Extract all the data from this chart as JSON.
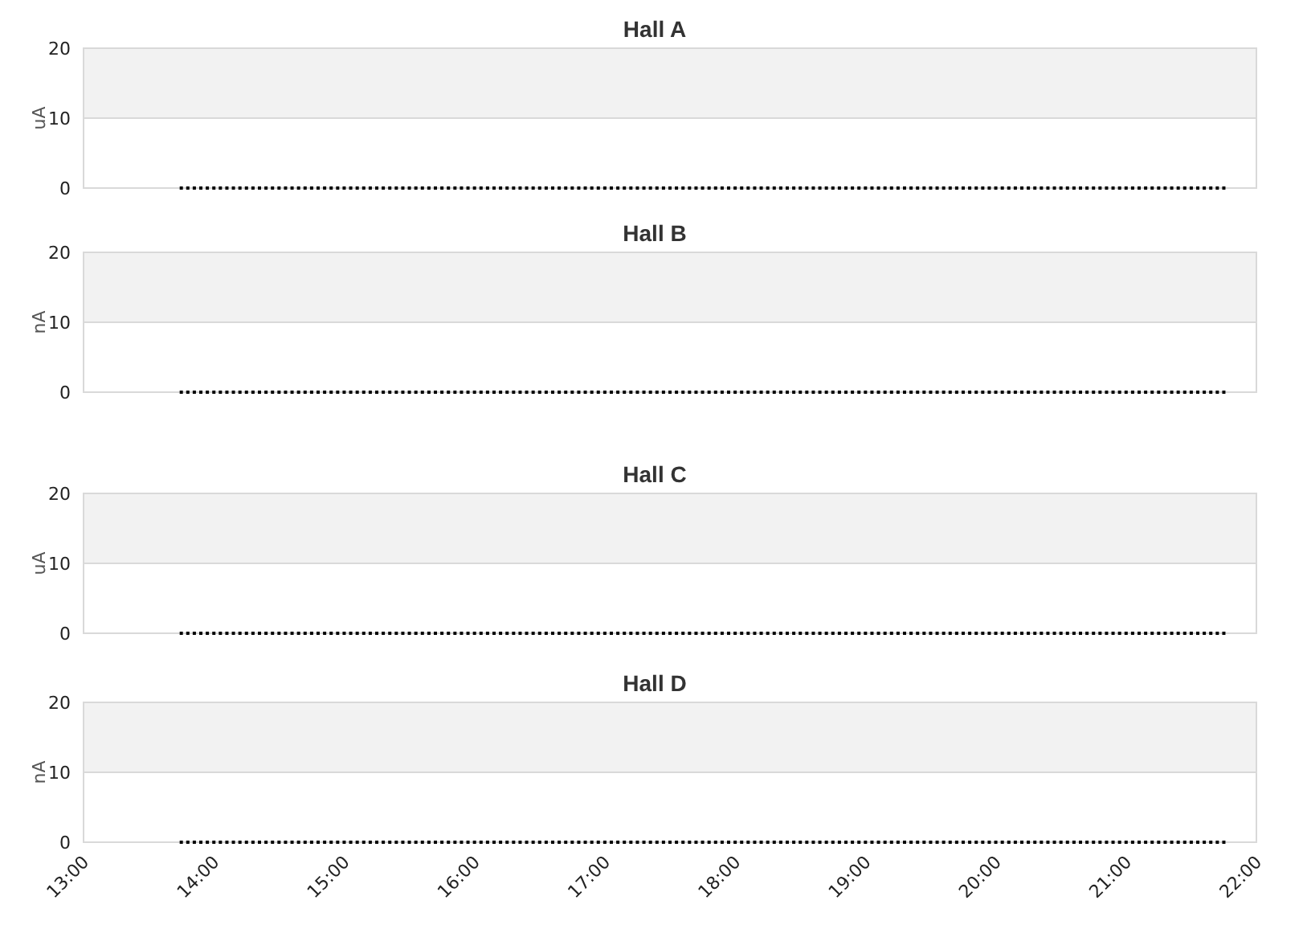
{
  "chart_data": [
    {
      "type": "scatter",
      "title": "Hall A",
      "ylabel": "uA",
      "xlim": [
        13,
        22
      ],
      "ylim": [
        0,
        20
      ],
      "yticks": [
        0,
        10,
        20
      ],
      "grid": "y",
      "bands": [
        {
          "axis": "y",
          "from": 10,
          "to": 20,
          "color": "#f2f2f2"
        }
      ],
      "tick_labels": "y",
      "marker": "square",
      "x": [
        13.75,
        13.8,
        13.85,
        13.9,
        13.95,
        14,
        14.05,
        14.1,
        14.15,
        14.2,
        14.25,
        14.3,
        14.35,
        14.4,
        14.45,
        14.5,
        14.55,
        14.6,
        14.65,
        14.7,
        14.75,
        14.8,
        14.85,
        14.9,
        14.95,
        15,
        15.05,
        15.1,
        15.15,
        15.2,
        15.25,
        15.3,
        15.35,
        15.4,
        15.45,
        15.5,
        15.55,
        15.6,
        15.65,
        15.7,
        15.75,
        15.8,
        15.85,
        15.9,
        15.95,
        16,
        16.05,
        16.1,
        16.15,
        16.2,
        16.25,
        16.3,
        16.35,
        16.4,
        16.45,
        16.5,
        16.55,
        16.6,
        16.65,
        16.7,
        16.75,
        16.8,
        16.85,
        16.9,
        16.95,
        17,
        17.05,
        17.1,
        17.15,
        17.2,
        17.25,
        17.3,
        17.35,
        17.4,
        17.45,
        17.5,
        17.55,
        17.6,
        17.65,
        17.7,
        17.75,
        17.8,
        17.85,
        17.9,
        17.95,
        18,
        18.05,
        18.1,
        18.15,
        18.2,
        18.25,
        18.3,
        18.35,
        18.4,
        18.45,
        18.5,
        18.55,
        18.6,
        18.65,
        18.7,
        18.75,
        18.8,
        18.85,
        18.9,
        18.95,
        19,
        19.05,
        19.1,
        19.15,
        19.2,
        19.25,
        19.3,
        19.35,
        19.4,
        19.45,
        19.5,
        19.55,
        19.6,
        19.65,
        19.7,
        19.75,
        19.8,
        19.85,
        19.9,
        19.95,
        20,
        20.05,
        20.1,
        20.15,
        20.2,
        20.25,
        20.3,
        20.35,
        20.4,
        20.45,
        20.5,
        20.55,
        20.6,
        20.65,
        20.7,
        20.75,
        20.8,
        20.85,
        20.9,
        20.95,
        21,
        21.05,
        21.1,
        21.15,
        21.2,
        21.25,
        21.3,
        21.35,
        21.4,
        21.45,
        21.5,
        21.55,
        21.6,
        21.65,
        21.7,
        21.75
      ],
      "series": [
        {
          "color": "#000000",
          "values": [
            0,
            0,
            0,
            0,
            0,
            0,
            0,
            0,
            0,
            0,
            0,
            0,
            0,
            0,
            0,
            0,
            0,
            0,
            0,
            0,
            0,
            0,
            0,
            0,
            0,
            0,
            0,
            0,
            0,
            0,
            0,
            0,
            0,
            0,
            0,
            0,
            0,
            0,
            0,
            0,
            0,
            0,
            0,
            0,
            0,
            0,
            0,
            0,
            0,
            0,
            0,
            0,
            0,
            0,
            0,
            0,
            0,
            0,
            0,
            0,
            0,
            0,
            0,
            0,
            0,
            0,
            0,
            0,
            0,
            0,
            0,
            0,
            0,
            0,
            0,
            0,
            0,
            0,
            0,
            0,
            0,
            0,
            0,
            0,
            0,
            0,
            0,
            0,
            0,
            0,
            0,
            0,
            0,
            0,
            0,
            0,
            0,
            0,
            0,
            0,
            0,
            0,
            0,
            0,
            0,
            0,
            0,
            0,
            0,
            0,
            0,
            0,
            0,
            0,
            0,
            0,
            0,
            0,
            0,
            0,
            0,
            0,
            0,
            0,
            0,
            0,
            0,
            0,
            0,
            0,
            0,
            0,
            0,
            0,
            0,
            0,
            0,
            0,
            0,
            0,
            0,
            0,
            0,
            0,
            0,
            0,
            0,
            0,
            0,
            0,
            0,
            0,
            0,
            0,
            0,
            0,
            0,
            0,
            0,
            0,
            0
          ]
        }
      ]
    },
    {
      "type": "scatter",
      "title": "Hall B",
      "ylabel": "nA",
      "xlim": [
        13,
        22
      ],
      "ylim": [
        0,
        20
      ],
      "yticks": [
        0,
        10,
        20
      ],
      "grid": "y",
      "bands": [
        {
          "axis": "y",
          "from": 10,
          "to": 20,
          "color": "#f2f2f2"
        }
      ],
      "tick_labels": "y",
      "marker": "square",
      "x": [
        13.75,
        13.8,
        13.85,
        13.9,
        13.95,
        14,
        14.05,
        14.1,
        14.15,
        14.2,
        14.25,
        14.3,
        14.35,
        14.4,
        14.45,
        14.5,
        14.55,
        14.6,
        14.65,
        14.7,
        14.75,
        14.8,
        14.85,
        14.9,
        14.95,
        15,
        15.05,
        15.1,
        15.15,
        15.2,
        15.25,
        15.3,
        15.35,
        15.4,
        15.45,
        15.5,
        15.55,
        15.6,
        15.65,
        15.7,
        15.75,
        15.8,
        15.85,
        15.9,
        15.95,
        16,
        16.05,
        16.1,
        16.15,
        16.2,
        16.25,
        16.3,
        16.35,
        16.4,
        16.45,
        16.5,
        16.55,
        16.6,
        16.65,
        16.7,
        16.75,
        16.8,
        16.85,
        16.9,
        16.95,
        17,
        17.05,
        17.1,
        17.15,
        17.2,
        17.25,
        17.3,
        17.35,
        17.4,
        17.45,
        17.5,
        17.55,
        17.6,
        17.65,
        17.7,
        17.75,
        17.8,
        17.85,
        17.9,
        17.95,
        18,
        18.05,
        18.1,
        18.15,
        18.2,
        18.25,
        18.3,
        18.35,
        18.4,
        18.45,
        18.5,
        18.55,
        18.6,
        18.65,
        18.7,
        18.75,
        18.8,
        18.85,
        18.9,
        18.95,
        19,
        19.05,
        19.1,
        19.15,
        19.2,
        19.25,
        19.3,
        19.35,
        19.4,
        19.45,
        19.5,
        19.55,
        19.6,
        19.65,
        19.7,
        19.75,
        19.8,
        19.85,
        19.9,
        19.95,
        20,
        20.05,
        20.1,
        20.15,
        20.2,
        20.25,
        20.3,
        20.35,
        20.4,
        20.45,
        20.5,
        20.55,
        20.6,
        20.65,
        20.7,
        20.75,
        20.8,
        20.85,
        20.9,
        20.95,
        21,
        21.05,
        21.1,
        21.15,
        21.2,
        21.25,
        21.3,
        21.35,
        21.4,
        21.45,
        21.5,
        21.55,
        21.6,
        21.65,
        21.7,
        21.75
      ],
      "series": [
        {
          "color": "#000000",
          "values": [
            0,
            0,
            0,
            0,
            0,
            0,
            0,
            0,
            0,
            0,
            0,
            0,
            0,
            0,
            0,
            0,
            0,
            0,
            0,
            0,
            0,
            0,
            0,
            0,
            0,
            0,
            0,
            0,
            0,
            0,
            0,
            0,
            0,
            0,
            0,
            0,
            0,
            0,
            0,
            0,
            0,
            0,
            0,
            0,
            0,
            0,
            0,
            0,
            0,
            0,
            0,
            0,
            0,
            0,
            0,
            0,
            0,
            0,
            0,
            0,
            0,
            0,
            0,
            0,
            0,
            0,
            0,
            0,
            0,
            0,
            0,
            0,
            0,
            0,
            0,
            0,
            0,
            0,
            0,
            0,
            0,
            0,
            0,
            0,
            0,
            0,
            0,
            0,
            0,
            0,
            0,
            0,
            0,
            0,
            0,
            0,
            0,
            0,
            0,
            0,
            0,
            0,
            0,
            0,
            0,
            0,
            0,
            0,
            0,
            0,
            0,
            0,
            0,
            0,
            0,
            0,
            0,
            0,
            0,
            0,
            0,
            0,
            0,
            0,
            0,
            0,
            0,
            0,
            0,
            0,
            0,
            0,
            0,
            0,
            0,
            0,
            0,
            0,
            0,
            0,
            0,
            0,
            0,
            0,
            0,
            0,
            0,
            0,
            0,
            0,
            0,
            0,
            0,
            0,
            0,
            0,
            0,
            0,
            0,
            0,
            0
          ]
        }
      ]
    },
    {
      "type": "scatter",
      "title": "Hall C",
      "ylabel": "uA",
      "xlim": [
        13,
        22
      ],
      "ylim": [
        0,
        20
      ],
      "yticks": [
        0,
        10,
        20
      ],
      "grid": "y",
      "bands": [
        {
          "axis": "y",
          "from": 10,
          "to": 20,
          "color": "#f2f2f2"
        }
      ],
      "tick_labels": "y",
      "marker": "square",
      "x": [
        13.75,
        13.8,
        13.85,
        13.9,
        13.95,
        14,
        14.05,
        14.1,
        14.15,
        14.2,
        14.25,
        14.3,
        14.35,
        14.4,
        14.45,
        14.5,
        14.55,
        14.6,
        14.65,
        14.7,
        14.75,
        14.8,
        14.85,
        14.9,
        14.95,
        15,
        15.05,
        15.1,
        15.15,
        15.2,
        15.25,
        15.3,
        15.35,
        15.4,
        15.45,
        15.5,
        15.55,
        15.6,
        15.65,
        15.7,
        15.75,
        15.8,
        15.85,
        15.9,
        15.95,
        16,
        16.05,
        16.1,
        16.15,
        16.2,
        16.25,
        16.3,
        16.35,
        16.4,
        16.45,
        16.5,
        16.55,
        16.6,
        16.65,
        16.7,
        16.75,
        16.8,
        16.85,
        16.9,
        16.95,
        17,
        17.05,
        17.1,
        17.15,
        17.2,
        17.25,
        17.3,
        17.35,
        17.4,
        17.45,
        17.5,
        17.55,
        17.6,
        17.65,
        17.7,
        17.75,
        17.8,
        17.85,
        17.9,
        17.95,
        18,
        18.05,
        18.1,
        18.15,
        18.2,
        18.25,
        18.3,
        18.35,
        18.4,
        18.45,
        18.5,
        18.55,
        18.6,
        18.65,
        18.7,
        18.75,
        18.8,
        18.85,
        18.9,
        18.95,
        19,
        19.05,
        19.1,
        19.15,
        19.2,
        19.25,
        19.3,
        19.35,
        19.4,
        19.45,
        19.5,
        19.55,
        19.6,
        19.65,
        19.7,
        19.75,
        19.8,
        19.85,
        19.9,
        19.95,
        20,
        20.05,
        20.1,
        20.15,
        20.2,
        20.25,
        20.3,
        20.35,
        20.4,
        20.45,
        20.5,
        20.55,
        20.6,
        20.65,
        20.7,
        20.75,
        20.8,
        20.85,
        20.9,
        20.95,
        21,
        21.05,
        21.1,
        21.15,
        21.2,
        21.25,
        21.3,
        21.35,
        21.4,
        21.45,
        21.5,
        21.55,
        21.6,
        21.65,
        21.7,
        21.75
      ],
      "series": [
        {
          "color": "#000000",
          "values": [
            0,
            0,
            0,
            0,
            0,
            0,
            0,
            0,
            0,
            0,
            0,
            0,
            0,
            0,
            0,
            0,
            0,
            0,
            0,
            0,
            0,
            0,
            0,
            0,
            0,
            0,
            0,
            0,
            0,
            0,
            0,
            0,
            0,
            0,
            0,
            0,
            0,
            0,
            0,
            0,
            0,
            0,
            0,
            0,
            0,
            0,
            0,
            0,
            0,
            0,
            0,
            0,
            0,
            0,
            0,
            0,
            0,
            0,
            0,
            0,
            0,
            0,
            0,
            0,
            0,
            0,
            0,
            0,
            0,
            0,
            0,
            0,
            0,
            0,
            0,
            0,
            0,
            0,
            0,
            0,
            0,
            0,
            0,
            0,
            0,
            0,
            0,
            0,
            0,
            0,
            0,
            0,
            0,
            0,
            0,
            0,
            0,
            0,
            0,
            0,
            0,
            0,
            0,
            0,
            0,
            0,
            0,
            0,
            0,
            0,
            0,
            0,
            0,
            0,
            0,
            0,
            0,
            0,
            0,
            0,
            0,
            0,
            0,
            0,
            0,
            0,
            0,
            0,
            0,
            0,
            0,
            0,
            0,
            0,
            0,
            0,
            0,
            0,
            0,
            0,
            0,
            0,
            0,
            0,
            0,
            0,
            0,
            0,
            0,
            0,
            0,
            0,
            0,
            0,
            0,
            0,
            0,
            0,
            0,
            0,
            0
          ]
        }
      ]
    },
    {
      "type": "scatter",
      "title": "Hall D",
      "ylabel": "nA",
      "xlim": [
        13,
        22
      ],
      "xticks": [
        {
          "value": 13,
          "label": "13:00"
        },
        {
          "value": 14,
          "label": "14:00"
        },
        {
          "value": 15,
          "label": "15:00"
        },
        {
          "value": 16,
          "label": "16:00"
        },
        {
          "value": 17,
          "label": "17:00"
        },
        {
          "value": 18,
          "label": "18:00"
        },
        {
          "value": 19,
          "label": "19:00"
        },
        {
          "value": 20,
          "label": "20:00"
        },
        {
          "value": 21,
          "label": "21:00"
        },
        {
          "value": 22,
          "label": "22:00"
        }
      ],
      "ylim": [
        0,
        20
      ],
      "yticks": [
        0,
        10,
        20
      ],
      "grid": "y",
      "bands": [
        {
          "axis": "y",
          "from": 10,
          "to": 20,
          "color": "#f2f2f2"
        }
      ],
      "marker": "square",
      "x": [
        13.75,
        13.8,
        13.85,
        13.9,
        13.95,
        14,
        14.05,
        14.1,
        14.15,
        14.2,
        14.25,
        14.3,
        14.35,
        14.4,
        14.45,
        14.5,
        14.55,
        14.6,
        14.65,
        14.7,
        14.75,
        14.8,
        14.85,
        14.9,
        14.95,
        15,
        15.05,
        15.1,
        15.15,
        15.2,
        15.25,
        15.3,
        15.35,
        15.4,
        15.45,
        15.5,
        15.55,
        15.6,
        15.65,
        15.7,
        15.75,
        15.8,
        15.85,
        15.9,
        15.95,
        16,
        16.05,
        16.1,
        16.15,
        16.2,
        16.25,
        16.3,
        16.35,
        16.4,
        16.45,
        16.5,
        16.55,
        16.6,
        16.65,
        16.7,
        16.75,
        16.8,
        16.85,
        16.9,
        16.95,
        17,
        17.05,
        17.1,
        17.15,
        17.2,
        17.25,
        17.3,
        17.35,
        17.4,
        17.45,
        17.5,
        17.55,
        17.6,
        17.65,
        17.7,
        17.75,
        17.8,
        17.85,
        17.9,
        17.95,
        18,
        18.05,
        18.1,
        18.15,
        18.2,
        18.25,
        18.3,
        18.35,
        18.4,
        18.45,
        18.5,
        18.55,
        18.6,
        18.65,
        18.7,
        18.75,
        18.8,
        18.85,
        18.9,
        18.95,
        19,
        19.05,
        19.1,
        19.15,
        19.2,
        19.25,
        19.3,
        19.35,
        19.4,
        19.45,
        19.5,
        19.55,
        19.6,
        19.65,
        19.7,
        19.75,
        19.8,
        19.85,
        19.9,
        19.95,
        20,
        20.05,
        20.1,
        20.15,
        20.2,
        20.25,
        20.3,
        20.35,
        20.4,
        20.45,
        20.5,
        20.55,
        20.6,
        20.65,
        20.7,
        20.75,
        20.8,
        20.85,
        20.9,
        20.95,
        21,
        21.05,
        21.1,
        21.15,
        21.2,
        21.25,
        21.3,
        21.35,
        21.4,
        21.45,
        21.5,
        21.55,
        21.6,
        21.65,
        21.7,
        21.75
      ],
      "series": [
        {
          "color": "#000000",
          "values": [
            0,
            0,
            0,
            0,
            0,
            0,
            0,
            0,
            0,
            0,
            0,
            0,
            0,
            0,
            0,
            0,
            0,
            0,
            0,
            0,
            0,
            0,
            0,
            0,
            0,
            0,
            0,
            0,
            0,
            0,
            0,
            0,
            0,
            0,
            0,
            0,
            0,
            0,
            0,
            0,
            0,
            0,
            0,
            0,
            0,
            0,
            0,
            0,
            0,
            0,
            0,
            0,
            0,
            0,
            0,
            0,
            0,
            0,
            0,
            0,
            0,
            0,
            0,
            0,
            0,
            0,
            0,
            0,
            0,
            0,
            0,
            0,
            0,
            0,
            0,
            0,
            0,
            0,
            0,
            0,
            0,
            0,
            0,
            0,
            0,
            0,
            0,
            0,
            0,
            0,
            0,
            0,
            0,
            0,
            0,
            0,
            0,
            0,
            0,
            0,
            0,
            0,
            0,
            0,
            0,
            0,
            0,
            0,
            0,
            0,
            0,
            0,
            0,
            0,
            0,
            0,
            0,
            0,
            0,
            0,
            0,
            0,
            0,
            0,
            0,
            0,
            0,
            0,
            0,
            0,
            0,
            0,
            0,
            0,
            0,
            0,
            0,
            0,
            0,
            0,
            0,
            0,
            0,
            0,
            0,
            0,
            0,
            0,
            0,
            0,
            0,
            0,
            0,
            0,
            0,
            0,
            0,
            0,
            0,
            0,
            0
          ]
        }
      ]
    }
  ]
}
